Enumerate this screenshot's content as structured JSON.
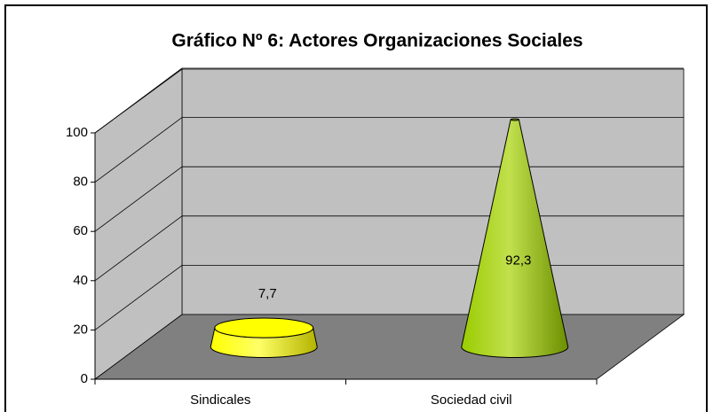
{
  "chart_data": {
    "type": "cone",
    "title": "Gráfico Nº 6: Actores Organizaciones Sociales",
    "categories": [
      "Sindicales",
      "Sociedad civil"
    ],
    "values": [
      7.7,
      92.3
    ],
    "value_labels": [
      "7,7",
      "92,3"
    ],
    "colors": [
      "#ffff00",
      "#99cc00"
    ],
    "ylim": [
      0,
      100
    ],
    "yticks": [
      0,
      20,
      40,
      60,
      80,
      100
    ],
    "grid": true
  }
}
